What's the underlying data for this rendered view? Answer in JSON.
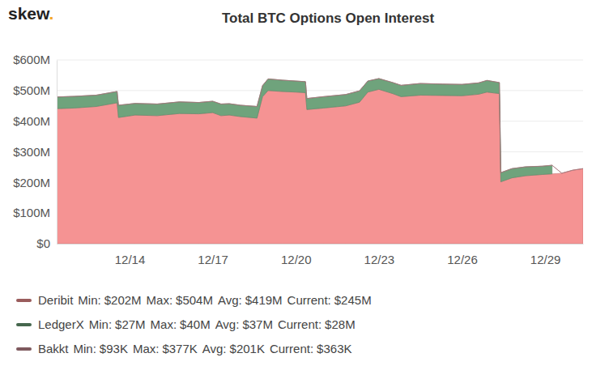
{
  "chart_data": {
    "type": "area",
    "stacked": true,
    "grid": true,
    "legend": "bottom",
    "logo": {
      "text": "skew",
      "dot": "."
    },
    "title": "Total BTC Options Open Interest",
    "x": [
      11.37,
      12.0,
      12.8,
      13.55,
      13.6,
      14.2,
      15.0,
      15.8,
      16.5,
      17.0,
      17.3,
      17.6,
      18.0,
      18.6,
      18.8,
      19.0,
      19.5,
      20.0,
      20.35,
      20.4,
      21.0,
      21.8,
      22.3,
      22.6,
      23.0,
      23.5,
      23.8,
      24.5,
      25.3,
      26.0,
      26.6,
      26.9,
      27.35,
      27.4,
      27.8,
      28.3,
      28.9,
      29.25,
      29.6,
      30.0,
      30.37
    ],
    "xlim": [
      11.37,
      30.37
    ],
    "xticks": [
      {
        "value": 14,
        "label": "12/14"
      },
      {
        "value": 17,
        "label": "12/17"
      },
      {
        "value": 20,
        "label": "12/20"
      },
      {
        "value": 23,
        "label": "12/23"
      },
      {
        "value": 26,
        "label": "12/26"
      },
      {
        "value": 29,
        "label": "12/29"
      }
    ],
    "ylim": [
      0,
      600
    ],
    "yticks": [
      {
        "value": 0,
        "label": "$0"
      },
      {
        "value": 100,
        "label": "$100M"
      },
      {
        "value": 200,
        "label": "$200M"
      },
      {
        "value": 300,
        "label": "$300M"
      },
      {
        "value": 400,
        "label": "$400M"
      },
      {
        "value": 500,
        "label": "$500M"
      },
      {
        "value": 600,
        "label": "$600M"
      }
    ],
    "stats_labels": [
      "Min:",
      "Max:",
      "Avg:",
      "Current:"
    ],
    "series": [
      {
        "name": "Deribit",
        "color": "#f59393",
        "values": [
          441,
          443,
          448,
          460,
          412,
          420,
          418,
          425,
          424,
          428,
          418,
          420,
          415,
          410,
          480,
          500,
          497,
          495,
          493,
          438,
          443,
          450,
          462,
          495,
          504,
          490,
          480,
          485,
          484,
          483,
          488,
          495,
          490,
          202,
          215,
          222,
          226,
          228,
          230,
          240,
          245
        ],
        "stats": [
          "$202M",
          "$504M",
          "$419M",
          "$245M"
        ]
      },
      {
        "name": "LedgerX",
        "color": "#6fa37c",
        "values": [
          38,
          38,
          37,
          37,
          40,
          38,
          38,
          38,
          37,
          37,
          38,
          37,
          37,
          38,
          36,
          38,
          37,
          36,
          36,
          36,
          37,
          37,
          37,
          36,
          35,
          36,
          37,
          38,
          37,
          37,
          37,
          38,
          36,
          30,
          30,
          29,
          27,
          28,
          null,
          null,
          null
        ],
        "stats": [
          "$27M",
          "$40M",
          "$37M",
          "$28M"
        ]
      },
      {
        "name": "Bakkt",
        "color": "#c98e96",
        "values": [
          0.093,
          0.1,
          0.12,
          0.13,
          0.13,
          0.15,
          0.16,
          0.17,
          0.18,
          0.18,
          0.19,
          0.19,
          0.2,
          0.2,
          0.2,
          0.21,
          0.21,
          0.22,
          0.22,
          0.22,
          0.23,
          0.23,
          0.24,
          0.24,
          0.25,
          0.25,
          0.26,
          0.26,
          0.27,
          0.27,
          0.28,
          0.3,
          0.3,
          0.3,
          0.31,
          0.33,
          0.35,
          0.36,
          0.377,
          0.363,
          0.363
        ],
        "stats": [
          "$93K",
          "$377K",
          "$201K",
          "$363K"
        ]
      }
    ]
  }
}
